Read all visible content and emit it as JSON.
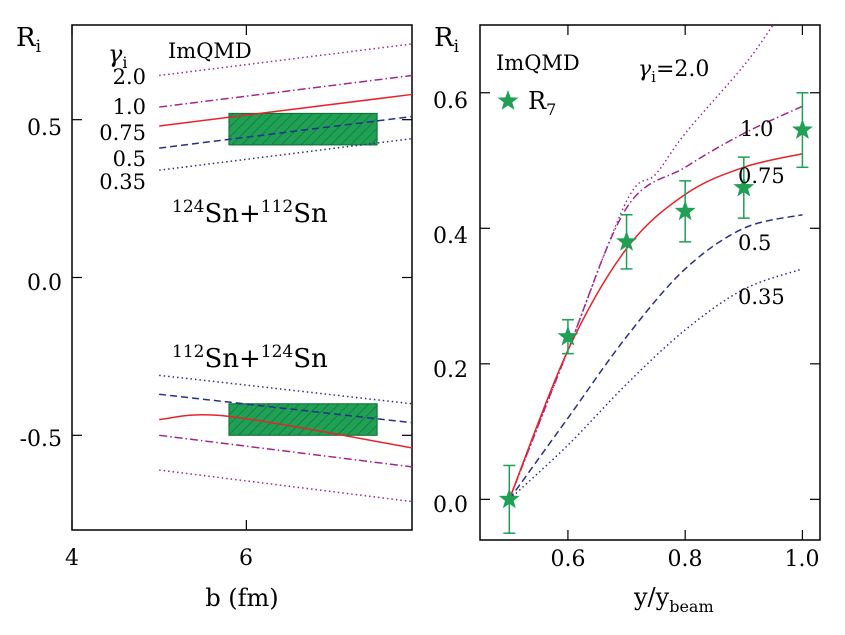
{
  "chart_data": [
    {
      "type": "line",
      "panel": "left",
      "ylabel": "R",
      "ylabel_sub": "i",
      "xlabel": "b (fm)",
      "xlim": [
        4.0,
        7.9
      ],
      "ylim": [
        -0.8,
        0.8
      ],
      "xticks": [
        4,
        6
      ],
      "xtick_labels": [
        "4",
        "6"
      ],
      "yticks": [
        0.5,
        0.0,
        -0.5
      ],
      "ytick_labels": [
        "0.5",
        "0.0",
        "-0.5"
      ],
      "legend_title": "γ",
      "legend_title_sub": "i",
      "model_label": "ImQMD",
      "reaction_top": {
        "a_mass": "124",
        "a_el": "Sn+",
        "b_mass": "112",
        "b_el": "Sn"
      },
      "reaction_bottom": {
        "a_mass": "112",
        "a_el": "Sn+",
        "b_mass": "124",
        "b_el": "Sn"
      },
      "series": [
        {
          "name": "2.0",
          "color": "#a0288c",
          "dash": "dot",
          "x": [
            5.0,
            7.9
          ],
          "values": [
            0.64,
            0.74
          ]
        },
        {
          "name": "1.0",
          "color": "#a0288c",
          "dash": "dashdot",
          "x": [
            5.0,
            7.9
          ],
          "values": [
            0.54,
            0.64
          ]
        },
        {
          "name": "0.75",
          "color": "#e8232a",
          "dash": "solid",
          "x": [
            5.0,
            7.9
          ],
          "values": [
            0.48,
            0.58
          ]
        },
        {
          "name": "0.5",
          "color": "#2a2f8c",
          "dash": "dash",
          "x": [
            5.0,
            7.9
          ],
          "values": [
            0.41,
            0.51
          ]
        },
        {
          "name": "0.35",
          "color": "#2a2f8c",
          "dash": "dot",
          "x": [
            5.0,
            7.9
          ],
          "values": [
            0.34,
            0.44
          ]
        },
        {
          "name": "0.35",
          "color": "#2a2f8c",
          "dash": "dot",
          "x": [
            5.0,
            7.9
          ],
          "values": [
            -0.31,
            -0.4
          ]
        },
        {
          "name": "0.5",
          "color": "#2a2f8c",
          "dash": "dash",
          "x": [
            5.0,
            7.9
          ],
          "values": [
            -0.37,
            -0.46
          ]
        },
        {
          "name": "0.75",
          "color": "#e8232a",
          "dash": "solid",
          "x": [
            5.0,
            5.8,
            7.9
          ],
          "values": [
            -0.45,
            -0.44,
            -0.54
          ]
        },
        {
          "name": "1.0",
          "color": "#a0288c",
          "dash": "dashdot",
          "x": [
            5.0,
            7.9
          ],
          "values": [
            -0.5,
            -0.6
          ]
        },
        {
          "name": "2.0",
          "color": "#a0288c",
          "dash": "dot",
          "x": [
            5.0,
            7.9
          ],
          "values": [
            -0.61,
            -0.71
          ]
        }
      ],
      "bands": [
        {
          "name": "data-band-top",
          "color": "#1fa055",
          "x": [
            5.8,
            7.5
          ],
          "y": [
            0.42,
            0.52
          ]
        },
        {
          "name": "data-band-bottom",
          "color": "#1fa055",
          "x": [
            5.8,
            7.5
          ],
          "y": [
            -0.5,
            -0.4
          ]
        }
      ],
      "legend_entries": [
        {
          "text": "2.0",
          "color": "#a0288c"
        },
        {
          "text": "1.0",
          "color": "#a0288c"
        },
        {
          "text": "0.75",
          "color": "#e8232a"
        },
        {
          "text": "0.5",
          "color": "#2a2f8c"
        },
        {
          "text": "0.35",
          "color": "#2a2f8c"
        }
      ]
    },
    {
      "type": "line",
      "panel": "right",
      "ylabel": "R",
      "ylabel_sub": "i",
      "xlabel": "y/y",
      "xlabel_sub": "beam",
      "xlim": [
        0.45,
        1.03
      ],
      "ylim": [
        -0.06,
        0.7
      ],
      "xticks": [
        0.6,
        0.8,
        1.0
      ],
      "xtick_labels": [
        "0.6",
        "0.8",
        "1.0"
      ],
      "yticks": [
        0.0,
        0.2,
        0.4,
        0.6
      ],
      "ytick_labels": [
        "0.0",
        "0.2",
        "0.4",
        "0.6"
      ],
      "model_label": "ImQMD",
      "data_label": "R",
      "data_label_sub": "7",
      "gamma_label": "γ",
      "gamma_label_sub": "i",
      "gamma_label_value": "=2.0",
      "series": [
        {
          "name": "2.0",
          "color": "#a0288c",
          "dash": "dot",
          "x": [
            0.5,
            0.6,
            0.7,
            0.75,
            0.8,
            0.9,
            0.95
          ],
          "values": [
            0.0,
            0.22,
            0.44,
            0.48,
            0.54,
            0.64,
            0.7
          ]
        },
        {
          "name": "1.0",
          "color": "#a0288c",
          "dash": "dashdot",
          "x": [
            0.5,
            0.6,
            0.7,
            0.8,
            0.9,
            1.0
          ],
          "values": [
            0.0,
            0.22,
            0.43,
            0.49,
            0.54,
            0.58
          ]
        },
        {
          "name": "0.75",
          "color": "#e8232a",
          "dash": "solid",
          "x": [
            0.5,
            0.6,
            0.7,
            0.8,
            0.9,
            1.0
          ],
          "values": [
            0.0,
            0.22,
            0.37,
            0.45,
            0.49,
            0.51
          ]
        },
        {
          "name": "0.5",
          "color": "#2a2f8c",
          "dash": "dash",
          "x": [
            0.5,
            0.6,
            0.7,
            0.8,
            0.9,
            1.0
          ],
          "values": [
            0.0,
            0.12,
            0.24,
            0.34,
            0.4,
            0.42
          ]
        },
        {
          "name": "0.35",
          "color": "#2a2f8c",
          "dash": "dot",
          "x": [
            0.5,
            0.6,
            0.7,
            0.8,
            0.9,
            1.0
          ],
          "values": [
            0.0,
            0.08,
            0.17,
            0.25,
            0.31,
            0.34
          ]
        }
      ],
      "points": {
        "name": "R7",
        "color": "#1fa055",
        "x": [
          0.5,
          0.6,
          0.7,
          0.8,
          0.9,
          1.0
        ],
        "values": [
          0.0,
          0.24,
          0.38,
          0.425,
          0.46,
          0.545
        ],
        "err": [
          0.05,
          0.025,
          0.04,
          0.045,
          0.045,
          0.055
        ]
      },
      "curve_labels": [
        {
          "text": "1.0",
          "color": "#a0288c"
        },
        {
          "text": "0.75",
          "color": "#e8232a"
        },
        {
          "text": "0.5",
          "color": "#2a2f8c"
        },
        {
          "text": "0.35",
          "color": "#2a2f8c"
        }
      ]
    }
  ]
}
